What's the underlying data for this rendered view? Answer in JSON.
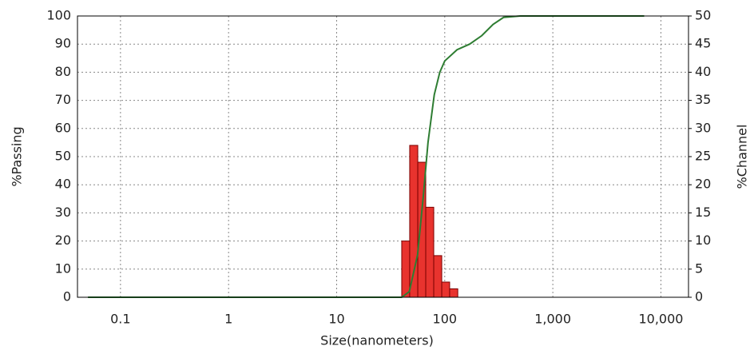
{
  "chart_data": {
    "type": "combo",
    "x_label": "Size(nanometers)",
    "y_label": "%Passing",
    "y2_label": "%Channel",
    "x_scale": "log",
    "grid": true,
    "xlim": [
      0.04,
      18000
    ],
    "xticks": [
      0.1,
      1,
      10,
      100,
      {
        "value": 1000,
        "label": "1,000"
      },
      {
        "value": 10000,
        "label": "10,000"
      }
    ],
    "ylim": [
      0,
      100
    ],
    "yticks": [
      0,
      10,
      20,
      30,
      40,
      50,
      60,
      70,
      80,
      90,
      100
    ],
    "y2lim": [
      0,
      50
    ],
    "y2ticks": [
      0,
      5,
      10,
      15,
      20,
      25,
      30,
      35,
      40,
      45,
      50
    ],
    "series": [
      {
        "type": "histogram",
        "axis": "y2",
        "color": "#e8332e",
        "bins": [
          40,
          47.4,
          56.3,
          66.7,
          79.1,
          93.8,
          111,
          132
        ],
        "values": [
          10,
          27,
          24,
          16,
          7.4,
          2.7,
          1.5
        ]
      },
      {
        "type": "line",
        "color": "#2e7d32",
        "x": [
          0.05,
          40,
          47,
          56,
          63,
          70,
          80,
          90,
          100,
          130,
          170,
          220,
          280,
          350,
          500,
          7000
        ],
        "values": [
          0,
          0,
          2,
          15,
          35,
          55,
          72,
          80,
          84,
          88,
          90,
          93,
          97,
          99.5,
          100,
          100
        ]
      }
    ]
  }
}
